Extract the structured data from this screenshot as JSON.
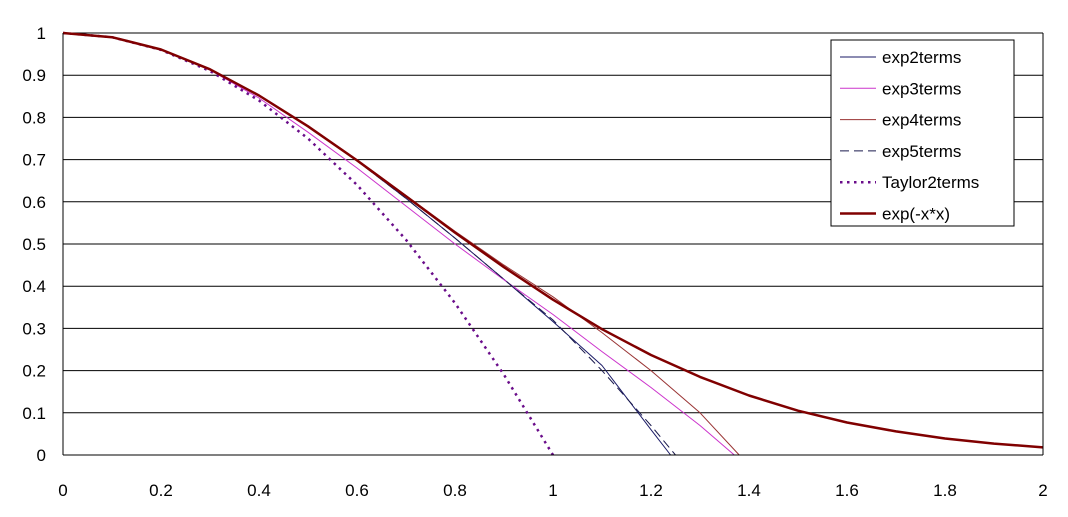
{
  "chart_data": {
    "type": "line",
    "title": "",
    "xlabel": "",
    "ylabel": "",
    "xlim": [
      0,
      2
    ],
    "ylim": [
      0,
      1
    ],
    "x_ticks": [
      "0",
      "0.2",
      "0.4",
      "0.6",
      "0.8",
      "1",
      "1.2",
      "1.4",
      "1.6",
      "1.8",
      "2"
    ],
    "y_ticks": [
      "0",
      "0.1",
      "0.2",
      "0.3",
      "0.4",
      "0.5",
      "0.6",
      "0.7",
      "0.8",
      "0.9",
      "1"
    ],
    "grid": "horizontal",
    "legend_position": "top-right",
    "series": [
      {
        "name": "exp2terms",
        "color": "#1a1a66",
        "style": "solid",
        "x": [
          0,
          0.1,
          0.2,
          0.3,
          0.4,
          0.5,
          0.6,
          0.7,
          0.8,
          0.9,
          1.0,
          1.1,
          1.2,
          1.24
        ],
        "y": [
          1,
          0.99,
          0.961,
          0.914,
          0.852,
          0.779,
          0.697,
          0.608,
          0.514,
          0.416,
          0.316,
          0.212,
          0.06,
          0
        ]
      },
      {
        "name": "exp3terms",
        "color": "#cc33cc",
        "style": "solid",
        "x": [
          0,
          0.1,
          0.2,
          0.3,
          0.4,
          0.5,
          0.6,
          0.7,
          0.8,
          0.9,
          1.0,
          1.1,
          1.2,
          1.3,
          1.37
        ],
        "y": [
          1,
          0.99,
          0.96,
          0.912,
          0.846,
          0.765,
          0.68,
          0.59,
          0.5,
          0.415,
          0.333,
          0.245,
          0.16,
          0.07,
          0
        ]
      },
      {
        "name": "exp4terms",
        "color": "#993333",
        "style": "solid",
        "x": [
          0,
          0.1,
          0.2,
          0.3,
          0.4,
          0.5,
          0.6,
          0.7,
          0.8,
          0.9,
          1.0,
          1.1,
          1.2,
          1.3,
          1.38
        ],
        "y": [
          1,
          0.99,
          0.961,
          0.914,
          0.852,
          0.78,
          0.7,
          0.615,
          0.53,
          0.45,
          0.375,
          0.29,
          0.2,
          0.1,
          0
        ]
      },
      {
        "name": "exp5terms",
        "color": "#1a1a4d",
        "style": "dashed",
        "x": [
          0,
          0.1,
          0.2,
          0.3,
          0.4,
          0.5,
          0.6,
          0.7,
          0.8,
          0.9,
          1.0,
          1.1,
          1.2,
          1.25
        ],
        "y": [
          1,
          0.99,
          0.961,
          0.914,
          0.852,
          0.779,
          0.697,
          0.608,
          0.514,
          0.416,
          0.32,
          0.2,
          0.07,
          0
        ]
      },
      {
        "name": "Taylor2terms",
        "color": "#6a0d8a",
        "style": "dotted",
        "x": [
          0,
          0.1,
          0.2,
          0.3,
          0.4,
          0.5,
          0.6,
          0.7,
          0.8,
          0.9,
          1.0
        ],
        "y": [
          1,
          0.99,
          0.96,
          0.91,
          0.84,
          0.75,
          0.64,
          0.51,
          0.36,
          0.19,
          0
        ]
      },
      {
        "name": "exp(-x*x)",
        "color": "#800000",
        "style": "thick",
        "x": [
          0,
          0.1,
          0.2,
          0.3,
          0.4,
          0.5,
          0.6,
          0.7,
          0.8,
          0.9,
          1.0,
          1.1,
          1.2,
          1.3,
          1.4,
          1.5,
          1.6,
          1.7,
          1.8,
          1.9,
          2.0
        ],
        "y": [
          1,
          0.99,
          0.961,
          0.914,
          0.852,
          0.779,
          0.698,
          0.613,
          0.527,
          0.445,
          0.368,
          0.298,
          0.237,
          0.185,
          0.141,
          0.105,
          0.077,
          0.056,
          0.039,
          0.027,
          0.018
        ]
      }
    ]
  }
}
